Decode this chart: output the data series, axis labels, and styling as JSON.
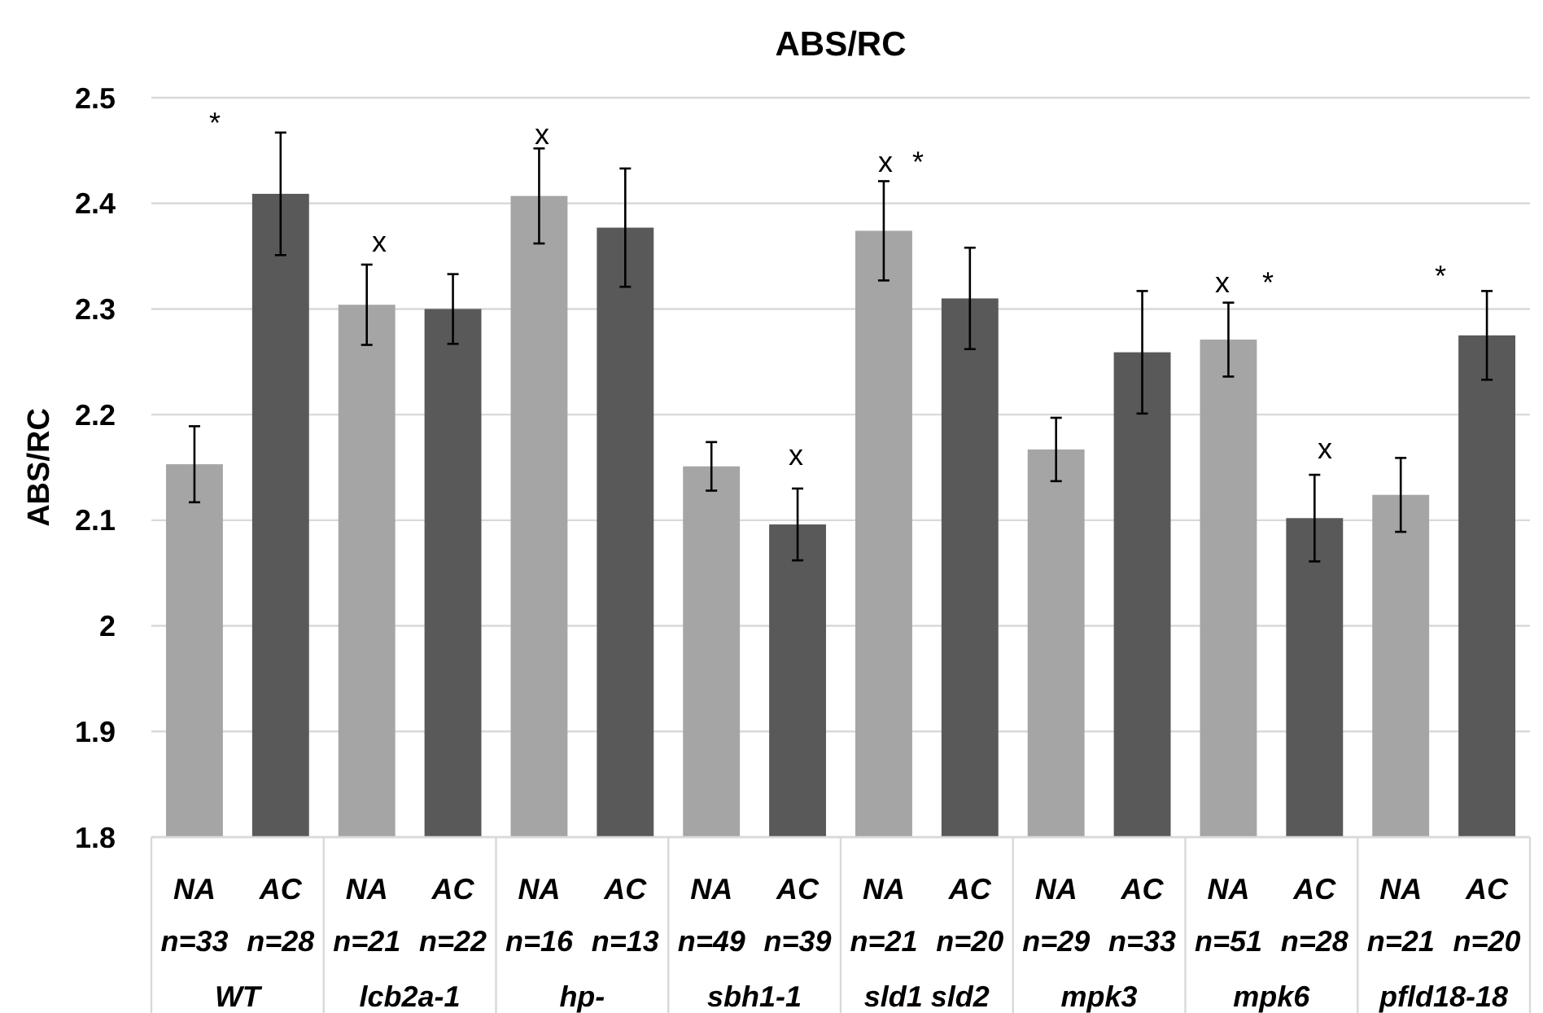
{
  "chart_data": {
    "type": "bar",
    "title": "ABS/RC",
    "ylabel": "ABS/RC",
    "categories": [
      "NA n=33",
      "AC n=28",
      "NA n=21",
      "AC n=22",
      "NA n=16",
      "AC n=13",
      "NA n=49",
      "AC n=39",
      "NA n=21",
      "AC n=20",
      "NA n=29",
      "AC n=33",
      "NA n=51",
      "AC n=28",
      "NA n=21",
      "AC n=20"
    ],
    "values": [
      2.153,
      2.409,
      2.304,
      2.3,
      2.407,
      2.377,
      2.151,
      2.096,
      2.374,
      2.31,
      2.167,
      2.259,
      2.271,
      2.102,
      2.124,
      2.275
    ],
    "errors": [
      0.036,
      0.058,
      0.038,
      0.033,
      0.045,
      0.056,
      0.023,
      0.034,
      0.047,
      0.048,
      0.03,
      0.058,
      0.035,
      0.041,
      0.035,
      0.042
    ],
    "colors": [
      "#a5a5a5",
      "#595959",
      "#a5a5a5",
      "#595959",
      "#a5a5a5",
      "#595959",
      "#a5a5a5",
      "#595959",
      "#a5a5a5",
      "#595959",
      "#a5a5a5",
      "#595959",
      "#a5a5a5",
      "#595959",
      "#a5a5a5",
      "#595959"
    ],
    "ylim": [
      1.8,
      2.5
    ],
    "yticks": [
      1.8,
      1.9,
      2,
      2.1,
      2.2,
      2.3,
      2.4,
      2.5
    ],
    "grid": "y",
    "annotations": [
      "WT",
      "lcb2a-1",
      "hp-",
      "sbh1-1",
      "sld1 sld2",
      "mpk3",
      "mpk6",
      "pfld18-18",
      "*",
      "x",
      "x",
      "x",
      "x",
      "*",
      "x",
      "*",
      "x",
      "*"
    ]
  }
}
